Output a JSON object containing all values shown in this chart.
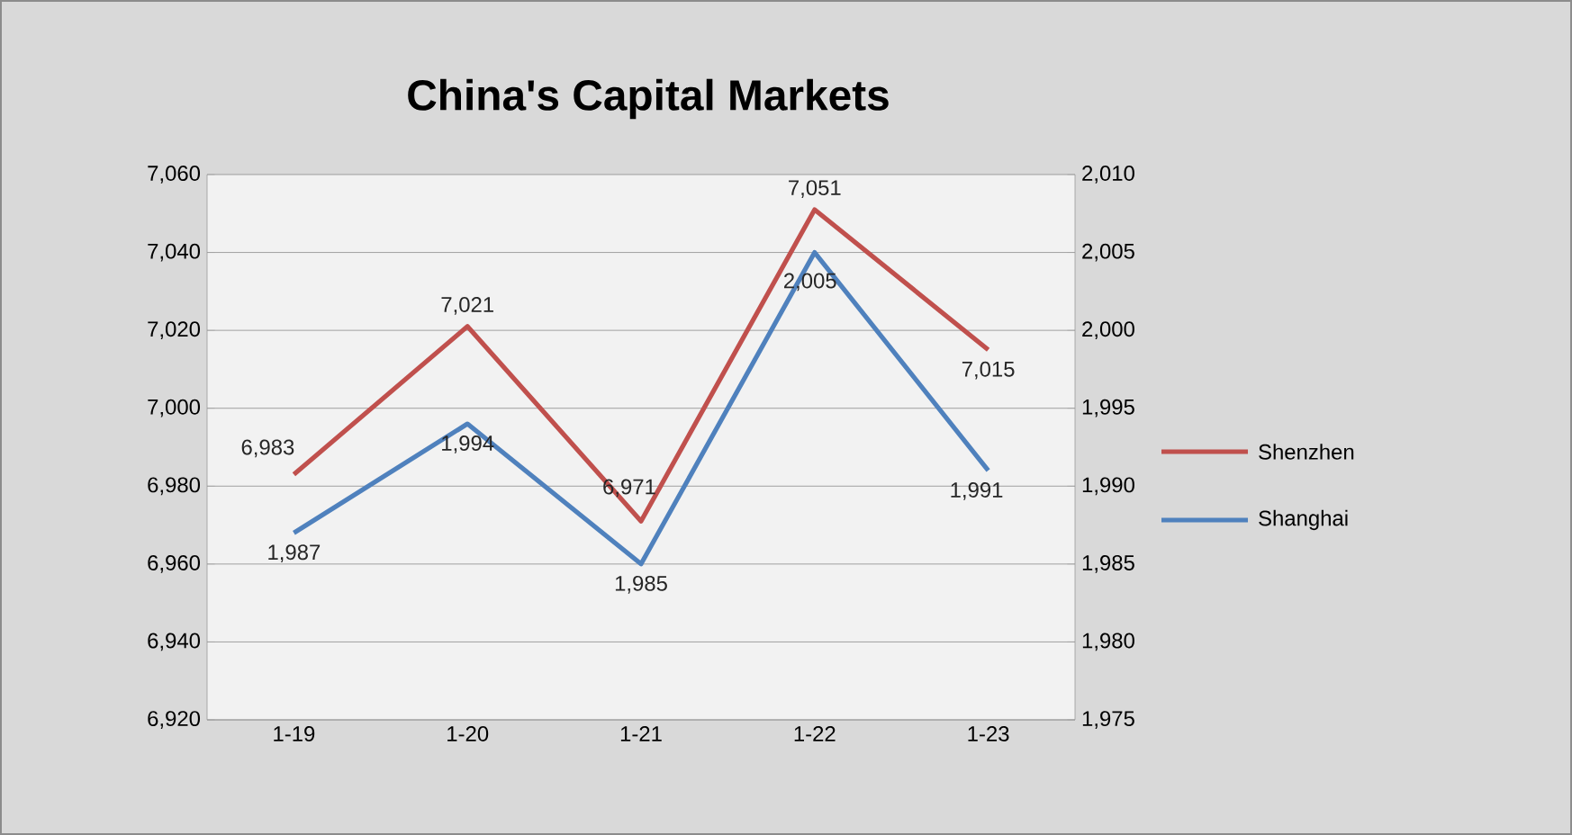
{
  "chart_data": {
    "type": "line",
    "title": "China's Capital Markets",
    "categories": [
      "1-19",
      "1-20",
      "1-21",
      "1-22",
      "1-23"
    ],
    "series": [
      {
        "name": "Shenzhen",
        "color": "#c0504d",
        "values": [
          6983,
          7021,
          6971,
          7051,
          7015
        ],
        "value_labels": [
          "6,983",
          "7,021",
          "6,971",
          "7,051",
          "7,015"
        ]
      },
      {
        "name": "Shanghai",
        "color": "#4f81bd",
        "axis": "y2",
        "values": [
          1987,
          1994,
          1985,
          2005,
          1991
        ],
        "value_labels": [
          "1,987",
          "1,994",
          "1,985",
          "2,005",
          "1,991"
        ]
      }
    ],
    "ylim": [
      6920,
      7060
    ],
    "yticks": [
      {
        "value": 6920,
        "label": "6,920"
      },
      {
        "value": 6940,
        "label": "6,940"
      },
      {
        "value": 6960,
        "label": "6,960"
      },
      {
        "value": 6980,
        "label": "6,980"
      },
      {
        "value": 7000,
        "label": "7,000"
      },
      {
        "value": 7020,
        "label": "7,020"
      },
      {
        "value": 7040,
        "label": "7,040"
      },
      {
        "value": 7060,
        "label": "7,060"
      }
    ],
    "y2lim": [
      1975,
      2010
    ],
    "y2ticks": [
      {
        "value": 1975,
        "label": "1,975"
      },
      {
        "value": 1980,
        "label": "1,980"
      },
      {
        "value": 1985,
        "label": "1,985"
      },
      {
        "value": 1990,
        "label": "1,990"
      },
      {
        "value": 1995,
        "label": "1,995"
      },
      {
        "value": 2000,
        "label": "2,000"
      },
      {
        "value": 2005,
        "label": "2,005"
      },
      {
        "value": 2010,
        "label": "2,010"
      }
    ],
    "grid": true,
    "legend": "right"
  }
}
